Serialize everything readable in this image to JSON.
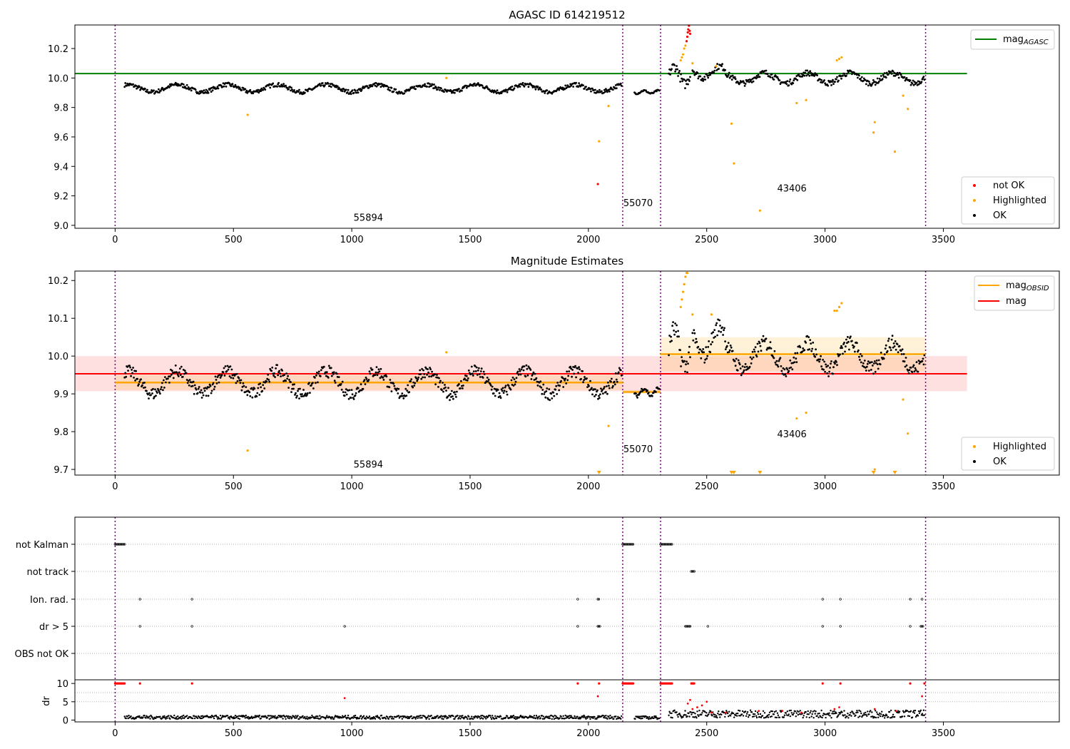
{
  "chart_data": [
    {
      "type": "scatter",
      "title": "AGASC ID 614219512",
      "xlim": [
        -170,
        3990
      ],
      "ylim": [
        8.98,
        10.36
      ],
      "x_ticks": [
        0,
        500,
        1000,
        1500,
        2000,
        2500,
        3000,
        3500
      ],
      "y_ticks": [
        9.0,
        9.2,
        9.4,
        9.6,
        9.8,
        10.0,
        10.2
      ],
      "mag_agasc": {
        "label": "mag_AGASC",
        "value": 10.03,
        "x_range": [
          -170,
          3600
        ],
        "color": "#008000"
      },
      "obsid_boundaries": [
        0,
        2145,
        2305,
        3425
      ],
      "obsid_labels": [
        {
          "text": "55894",
          "x": 1070,
          "y": 9.03
        },
        {
          "text": "55070",
          "x": 2210,
          "y": 9.13
        },
        {
          "text": "43406",
          "x": 2860,
          "y": 9.23
        }
      ],
      "series": [
        {
          "name": "not OK",
          "color": "#ff0000"
        },
        {
          "name": "Highlighted",
          "color": "#ffa500"
        },
        {
          "name": "OK",
          "color": "#000000"
        }
      ],
      "highlighted_points": [
        [
          560,
          9.75
        ],
        [
          1400,
          10.0
        ],
        [
          2045,
          9.57
        ],
        [
          2085,
          9.81
        ],
        [
          2605,
          9.69
        ],
        [
          2615,
          9.42
        ],
        [
          2725,
          9.1
        ],
        [
          2880,
          9.83
        ],
        [
          2920,
          9.85
        ],
        [
          3205,
          9.63
        ],
        [
          3210,
          9.7
        ],
        [
          3295,
          9.5
        ],
        [
          3330,
          9.88
        ],
        [
          3350,
          9.79
        ],
        [
          2390,
          10.12
        ],
        [
          2395,
          10.14
        ],
        [
          2400,
          10.16
        ],
        [
          2405,
          10.2
        ],
        [
          2410,
          10.22
        ],
        [
          2440,
          10.1
        ],
        [
          3050,
          10.12
        ],
        [
          3060,
          10.13
        ],
        [
          3070,
          10.14
        ],
        [
          2540,
          10.08
        ]
      ],
      "not_ok_points": [
        [
          2040,
          9.28
        ],
        [
          2415,
          10.25
        ],
        [
          2418,
          10.28
        ],
        [
          2420,
          10.31
        ],
        [
          2422,
          10.33
        ],
        [
          2425,
          10.36
        ],
        [
          2428,
          10.32
        ],
        [
          2430,
          10.3
        ]
      ],
      "ok_segments": [
        {
          "x_range": [
            40,
            2140
          ],
          "base": 9.93,
          "amp": 0.025,
          "period": 210
        },
        {
          "x_range": [
            2195,
            2300
          ],
          "base": 9.905,
          "amp": 0.01,
          "period": 60
        },
        {
          "x_range": [
            2340,
            2430
          ],
          "base": 10.02,
          "amp": 0.06,
          "period": 90
        },
        {
          "x_range": [
            2440,
            2580
          ],
          "base": 10.04,
          "amp": 0.04,
          "period": 140
        },
        {
          "x_range": [
            2580,
            3420
          ],
          "base": 10.0,
          "amp": 0.035,
          "period": 180
        }
      ]
    },
    {
      "type": "scatter",
      "title": "Magnitude Estimates",
      "xlim": [
        -170,
        3990
      ],
      "ylim": [
        9.685,
        10.225
      ],
      "x_ticks": [
        0,
        500,
        1000,
        1500,
        2000,
        2500,
        3000,
        3500
      ],
      "y_ticks": [
        9.7,
        9.8,
        9.9,
        10.0,
        10.1,
        10.2
      ],
      "mag_obsid": {
        "label": "mag_OBSID",
        "color": "#ffa500",
        "segments": [
          {
            "x_range": [
              0,
              2145
            ],
            "value": 9.93,
            "band": [
              9.91,
              9.95
            ]
          },
          {
            "x_range": [
              2145,
              2305
            ],
            "value": 9.905,
            "band": [
              9.9,
              9.91
            ]
          },
          {
            "x_range": [
              2305,
              3425
            ],
            "value": 10.005,
            "band": [
              9.96,
              10.05
            ]
          }
        ]
      },
      "mag": {
        "label": "mag",
        "value": 9.953,
        "band": [
          9.907,
          10.0
        ],
        "x_range": [
          -170,
          3600
        ],
        "color": "#ff0000"
      },
      "obsid_boundaries": [
        0,
        2145,
        2305,
        3425
      ],
      "obsid_labels": [
        {
          "text": "55894",
          "x": 1070,
          "y": 9.705
        },
        {
          "text": "55070",
          "x": 2210,
          "y": 9.745
        },
        {
          "text": "43406",
          "x": 2860,
          "y": 9.785
        }
      ],
      "series": [
        {
          "name": "Highlighted",
          "color": "#ffa500"
        },
        {
          "name": "OK",
          "color": "#000000"
        }
      ],
      "highlighted_points": [
        [
          560,
          9.75
        ],
        [
          1400,
          10.01
        ],
        [
          2085,
          9.815
        ],
        [
          2880,
          9.835
        ],
        [
          2920,
          9.85
        ],
        [
          3210,
          9.7
        ],
        [
          3330,
          9.885
        ],
        [
          3350,
          9.795
        ],
        [
          2390,
          10.13
        ],
        [
          2395,
          10.15
        ],
        [
          2400,
          10.17
        ],
        [
          2405,
          10.19
        ],
        [
          2410,
          10.21
        ],
        [
          2415,
          10.22
        ],
        [
          2418,
          10.22
        ],
        [
          2440,
          10.11
        ],
        [
          2520,
          10.11
        ],
        [
          3040,
          10.12
        ],
        [
          3050,
          10.12
        ],
        [
          3060,
          10.13
        ],
        [
          3070,
          10.14
        ]
      ],
      "clipped_low_points": [
        2045,
        2605,
        2615,
        2725,
        3205,
        3295
      ],
      "ok_segments": [
        {
          "x_range": [
            40,
            2140
          ],
          "base": 9.93,
          "amp": 0.03,
          "period": 210
        },
        {
          "x_range": [
            2195,
            2300
          ],
          "base": 9.905,
          "amp": 0.01,
          "period": 60
        },
        {
          "x_range": [
            2340,
            2430
          ],
          "base": 10.02,
          "amp": 0.05,
          "period": 90
        },
        {
          "x_range": [
            2440,
            2580
          ],
          "base": 10.04,
          "amp": 0.04,
          "period": 140
        },
        {
          "x_range": [
            2580,
            3420
          ],
          "base": 10.0,
          "amp": 0.035,
          "period": 180
        }
      ]
    },
    {
      "type": "scatter",
      "title": "",
      "xlim": [
        -170,
        3990
      ],
      "x_ticks": [
        0,
        500,
        1000,
        1500,
        2000,
        2500,
        3000,
        3500
      ],
      "flag_rows": [
        "not Kalman",
        "not track",
        "Ion. rad.",
        "dr > 5",
        "OBS not OK"
      ],
      "obsid_boundaries": [
        0,
        2145,
        2305,
        3425
      ],
      "flag_points": {
        "not Kalman": [
          [
            0,
            40
          ],
          [
            2145,
            2190
          ],
          [
            2305,
            2355
          ]
        ],
        "not track": [
          [
            2435,
            2450
          ]
        ],
        "Ion. rad.": [
          [
            105,
            105
          ],
          [
            325,
            325
          ],
          [
            1955,
            1955
          ],
          [
            2040,
            2045
          ],
          [
            2990,
            2990
          ],
          [
            3065,
            3065
          ],
          [
            3360,
            3360
          ],
          [
            3410,
            3410
          ]
        ],
        "dr > 5": [
          [
            105,
            105
          ],
          [
            325,
            325
          ],
          [
            970,
            970
          ],
          [
            1955,
            1955
          ],
          [
            2040,
            2048
          ],
          [
            2410,
            2430
          ],
          [
            2505,
            2505
          ],
          [
            2990,
            2990
          ],
          [
            3065,
            3065
          ],
          [
            3360,
            3360
          ],
          [
            3405,
            3415
          ]
        ],
        "OBS not OK": []
      },
      "dr": {
        "ylabel": "dr",
        "ylim": [
          -0.5,
          11
        ],
        "y_ticks": [
          0,
          5,
          10
        ],
        "red_points": [
          [
            970,
            6
          ],
          [
            2040,
            6.5
          ],
          [
            3410,
            6.5
          ],
          [
            2420,
            4.5
          ],
          [
            2430,
            5.5
          ],
          [
            2440,
            3
          ],
          [
            2460,
            3.5
          ],
          [
            2480,
            4
          ],
          [
            2500,
            5
          ],
          [
            2520,
            2
          ],
          [
            2580,
            2
          ],
          [
            2720,
            2.5
          ],
          [
            2820,
            2.5
          ],
          [
            2900,
            2
          ],
          [
            3040,
            3
          ],
          [
            3060,
            3.5
          ],
          [
            3210,
            3
          ],
          [
            3300,
            2.5
          ]
        ],
        "red_clusters_at_10": [
          [
            0,
            40
          ],
          [
            105,
            105
          ],
          [
            325,
            325
          ],
          [
            1955,
            1955
          ],
          [
            2045,
            2045
          ],
          [
            2145,
            2190
          ],
          [
            2305,
            2355
          ],
          [
            2435,
            2450
          ],
          [
            2990,
            2990
          ],
          [
            3065,
            3065
          ],
          [
            3360,
            3360
          ],
          [
            3420,
            3420
          ]
        ],
        "ok_segments": [
          {
            "x_range": [
              40,
              2140
            ],
            "base": 0.7
          },
          {
            "x_range": [
              2195,
              2300
            ],
            "base": 0.6
          },
          {
            "x_range": [
              2340,
              3420
            ],
            "base": 1.5
          }
        ]
      }
    }
  ]
}
